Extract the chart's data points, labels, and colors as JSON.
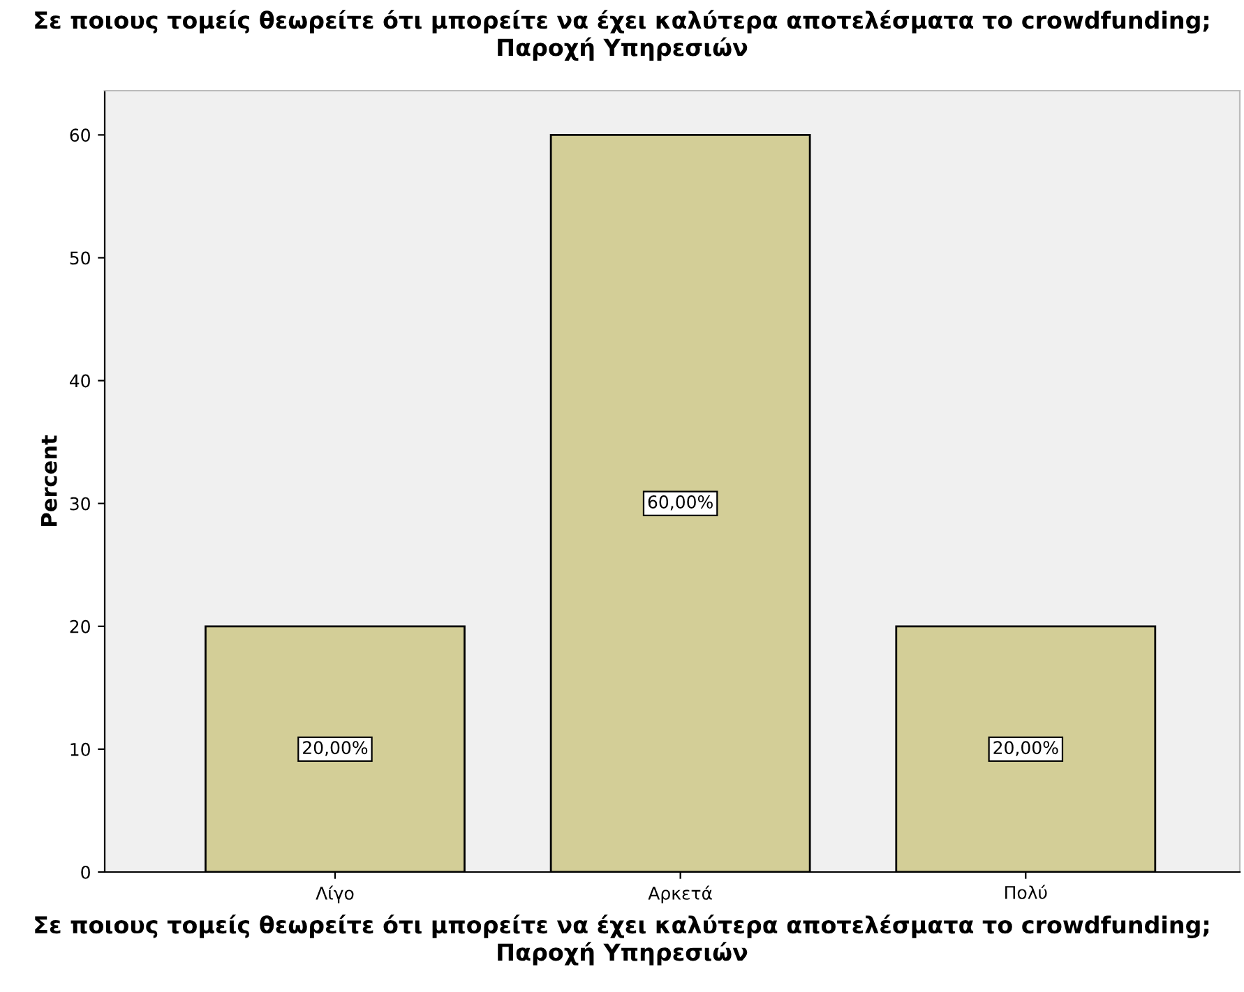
{
  "chart_data": {
    "type": "bar",
    "title": "Σε ποιους τομείς θεωρείτε ότι μπορείτε να έχει καλύτερα αποτελέσματα το crowdfunding; Παροχή Υπηρεσιών",
    "xlabel": "Σε ποιους τομείς θεωρείτε ότι μπορείτε να έχει καλύτερα αποτελέσματα το crowdfunding; Παροχή Υπηρεσιών",
    "ylabel": "Percent",
    "categories": [
      "Λίγο",
      "Αρκετά",
      "Πολύ"
    ],
    "values": [
      20,
      60,
      20
    ],
    "value_labels": [
      "20,00%",
      "60,00%",
      "20,00%"
    ],
    "color": "#d3ce97",
    "ylim": [
      0,
      63.6
    ],
    "yticks": [
      0,
      10,
      20,
      30,
      40,
      50,
      60
    ],
    "grid": false,
    "legend": false
  }
}
